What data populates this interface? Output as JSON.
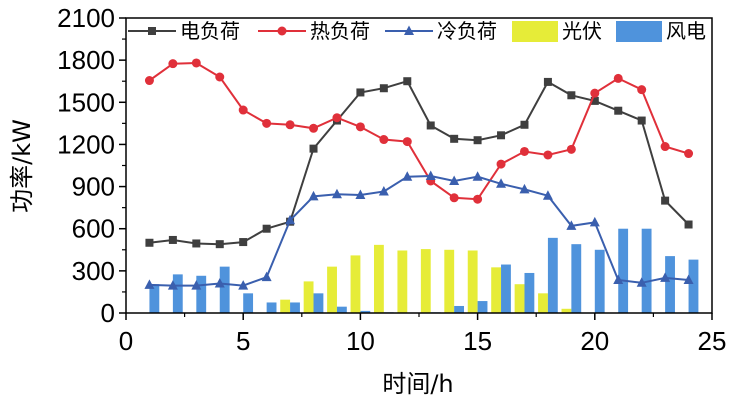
{
  "chart_data": {
    "type": "bar",
    "xlabel": "时间/h",
    "ylabel": "功率/kW",
    "xlim": [
      0,
      25
    ],
    "ylim": [
      0,
      2100
    ],
    "x_ticks": [
      0,
      5,
      10,
      15,
      20,
      25
    ],
    "y_ticks": [
      0,
      300,
      600,
      900,
      1200,
      1500,
      1800,
      2100
    ],
    "grid": false,
    "legend_position": "top",
    "x": [
      1,
      2,
      3,
      4,
      5,
      6,
      7,
      8,
      9,
      10,
      11,
      12,
      13,
      14,
      15,
      16,
      17,
      18,
      19,
      20,
      21,
      22,
      23,
      24
    ],
    "lines": [
      {
        "name": "电负荷",
        "color": "#3f3f3f",
        "marker": "square",
        "values": [
          500,
          520,
          495,
          490,
          505,
          600,
          650,
          1170,
          1370,
          1570,
          1600,
          1650,
          1335,
          1240,
          1230,
          1265,
          1340,
          1645,
          1550,
          1510,
          1440,
          1370,
          800,
          630
        ]
      },
      {
        "name": "热负荷",
        "color": "#e0303a",
        "marker": "circle",
        "values": [
          1655,
          1775,
          1780,
          1680,
          1445,
          1350,
          1340,
          1315,
          1390,
          1325,
          1235,
          1220,
          940,
          820,
          810,
          1060,
          1150,
          1125,
          1165,
          1565,
          1670,
          1590,
          1185,
          1135
        ]
      },
      {
        "name": "冷负荷",
        "color": "#3a5fae",
        "marker": "triangle",
        "values": [
          200,
          195,
          195,
          210,
          195,
          255,
          660,
          830,
          845,
          840,
          865,
          970,
          975,
          940,
          970,
          920,
          880,
          835,
          620,
          645,
          235,
          215,
          250,
          235
        ]
      }
    ],
    "bars": [
      {
        "name": "光伏",
        "color": "#e6ec38",
        "values": [
          0,
          0,
          0,
          0,
          0,
          0,
          95,
          225,
          330,
          410,
          485,
          445,
          455,
          450,
          445,
          325,
          205,
          140,
          30,
          0,
          0,
          0,
          0,
          0
        ]
      },
      {
        "name": "风电",
        "color": "#4f93dc",
        "values": [
          205,
          275,
          265,
          330,
          140,
          75,
          75,
          140,
          45,
          15,
          5,
          0,
          5,
          50,
          85,
          345,
          285,
          535,
          490,
          450,
          600,
          600,
          405,
          380
        ]
      }
    ]
  }
}
